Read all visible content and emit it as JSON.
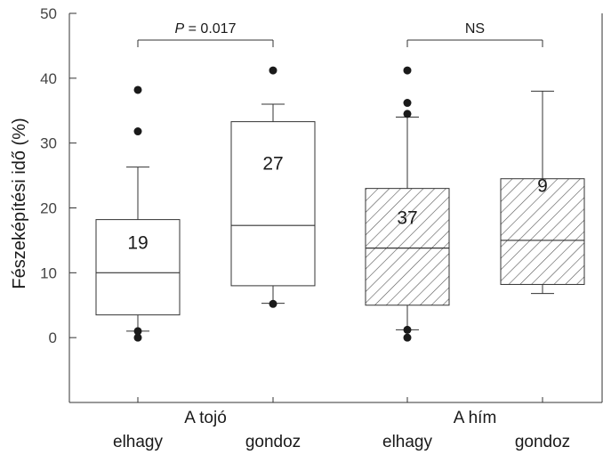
{
  "chart_data": {
    "type": "box",
    "ylabel": "Fészeképítési idő (%)",
    "ylim": [
      -10,
      50
    ],
    "yticks": [
      0,
      10,
      20,
      30,
      40,
      50
    ],
    "grid": false,
    "groups": [
      {
        "label": "A tojó",
        "conditions": [
          "elhagy",
          "gondoz"
        ]
      },
      {
        "label": "A hím",
        "conditions": [
          "elhagy",
          "gondoz"
        ]
      }
    ],
    "boxes": [
      {
        "group": "A tojó",
        "condition": "elhagy",
        "n": "19",
        "hatched": false,
        "q1": 3.5,
        "median": 10,
        "q3": 18.2,
        "whisker_low": 1,
        "whisker_high": 26.3,
        "outliers": [
          38.2,
          31.8,
          1.0,
          0.0
        ]
      },
      {
        "group": "A tojó",
        "condition": "gondoz",
        "n": "27",
        "hatched": false,
        "q1": 8.0,
        "median": 17.3,
        "q3": 33.3,
        "whisker_low": 5.3,
        "whisker_high": 36.0,
        "outliers": [
          41.2,
          5.2
        ]
      },
      {
        "group": "A hím",
        "condition": "elhagy",
        "n": "37",
        "hatched": true,
        "q1": 5.0,
        "median": 13.8,
        "q3": 23.0,
        "whisker_low": 1.2,
        "whisker_high": 34.0,
        "outliers": [
          41.2,
          36.2,
          34.5,
          1.2,
          0.0
        ]
      },
      {
        "group": "A hím",
        "condition": "gondoz",
        "n": "9",
        "hatched": true,
        "q1": 8.2,
        "median": 15.0,
        "q3": 24.5,
        "whisker_low": 6.8,
        "whisker_high": 38.0,
        "outliers": []
      }
    ],
    "comparisons": [
      {
        "group": "A tojó",
        "label_prefix": "P",
        "label_value": " = 0.017"
      },
      {
        "group": "A hím",
        "label_prefix": "",
        "label_value": "NS"
      }
    ]
  }
}
